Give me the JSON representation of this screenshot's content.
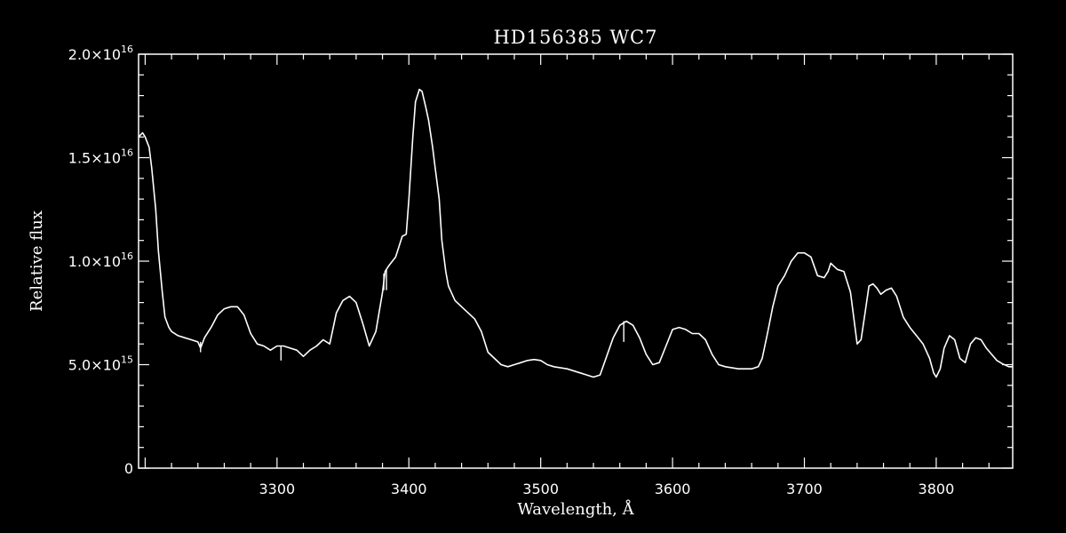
{
  "chart_data": {
    "type": "line",
    "title": "HD156385  WC7",
    "xlabel": "Wavelength, Å",
    "ylabel": "Relative flux",
    "xlim": [
      3195,
      3858
    ],
    "ylim": [
      0,
      2e+16
    ],
    "grid": false,
    "x_ticks": [
      {
        "value": 3300,
        "label": "3300"
      },
      {
        "value": 3400,
        "label": "3400"
      },
      {
        "value": 3500,
        "label": "3500"
      },
      {
        "value": 3600,
        "label": "3600"
      },
      {
        "value": 3700,
        "label": "3700"
      },
      {
        "value": 3800,
        "label": "3800"
      }
    ],
    "y_ticks": [
      {
        "value": 0,
        "mantissa": "0",
        "exponent": ""
      },
      {
        "value": 5000000000000000.0,
        "mantissa": "5.0×10",
        "exponent": "15"
      },
      {
        "value": 1e+16,
        "mantissa": "1.0×10",
        "exponent": "16"
      },
      {
        "value": 1.5e+16,
        "mantissa": "1.5×10",
        "exponent": "16"
      },
      {
        "value": 2e+16,
        "mantissa": "2.0×10",
        "exponent": "16"
      }
    ],
    "series": [
      {
        "color": "#ffffff",
        "x": [
          3195,
          3198,
          3200,
          3203,
          3205,
          3208,
          3210,
          3213,
          3215,
          3218,
          3220,
          3225,
          3230,
          3235,
          3240,
          3242,
          3245,
          3250,
          3255,
          3260,
          3265,
          3270,
          3275,
          3280,
          3285,
          3290,
          3295,
          3300,
          3305,
          3310,
          3315,
          3320,
          3325,
          3330,
          3335,
          3340,
          3345,
          3350,
          3355,
          3360,
          3365,
          3370,
          3375,
          3380,
          3382,
          3385,
          3390,
          3395,
          3398,
          3400,
          3403,
          3405,
          3408,
          3410,
          3413,
          3415,
          3418,
          3420,
          3423,
          3425,
          3428,
          3430,
          3435,
          3440,
          3450,
          3455,
          3460,
          3465,
          3470,
          3475,
          3480,
          3485,
          3490,
          3495,
          3500,
          3505,
          3510,
          3520,
          3530,
          3535,
          3540,
          3545,
          3550,
          3555,
          3560,
          3565,
          3570,
          3575,
          3580,
          3585,
          3590,
          3595,
          3600,
          3605,
          3610,
          3615,
          3620,
          3625,
          3630,
          3635,
          3640,
          3650,
          3660,
          3665,
          3668,
          3672,
          3676,
          3680,
          3685,
          3690,
          3695,
          3700,
          3705,
          3710,
          3715,
          3718,
          3720,
          3725,
          3730,
          3735,
          3738,
          3740,
          3743,
          3746,
          3749,
          3752,
          3755,
          3758,
          3762,
          3766,
          3770,
          3775,
          3780,
          3785,
          3790,
          3795,
          3798,
          3800,
          3803,
          3806,
          3810,
          3814,
          3818,
          3822,
          3826,
          3830,
          3834,
          3838,
          3842,
          3846,
          3850,
          3855,
          3858
        ],
        "y": [
          1.6e+16,
          1.62e+16,
          1.6e+16,
          1.55e+16,
          1.45e+16,
          1.25e+16,
          1.05e+16,
          8500000000000000.0,
          7300000000000000.0,
          6800000000000000.0,
          6600000000000000.0,
          6400000000000000.0,
          6300000000000000.0,
          6200000000000000.0,
          6100000000000000.0,
          5800000000000000.0,
          6300000000000000.0,
          6800000000000000.0,
          7400000000000000.0,
          7700000000000000.0,
          7800000000000000.0,
          7800000000000000.0,
          7400000000000000.0,
          6500000000000000.0,
          6000000000000000.0,
          5900000000000000.0,
          5700000000000000.0,
          5900000000000000.0,
          5900000000000000.0,
          5800000000000000.0,
          5700000000000000.0,
          5400000000000000.0,
          5700000000000000.0,
          5900000000000000.0,
          6200000000000000.0,
          6000000000000000.0,
          7500000000000000.0,
          8100000000000000.0,
          8300000000000000.0,
          8000000000000000.0,
          7000000000000000.0,
          5900000000000000.0,
          6600000000000000.0,
          8500000000000000.0,
          9500000000000000.0,
          9800000000000000.0,
          1.02e+16,
          1.12e+16,
          1.13e+16,
          1.3e+16,
          1.6e+16,
          1.77e+16,
          1.83e+16,
          1.82e+16,
          1.74e+16,
          1.68e+16,
          1.55e+16,
          1.45e+16,
          1.3e+16,
          1.1e+16,
          9500000000000000.0,
          8800000000000000.0,
          8100000000000000.0,
          7800000000000000.0,
          7200000000000000.0,
          6600000000000000.0,
          5600000000000000.0,
          5300000000000000.0,
          5000000000000000.0,
          4900000000000000.0,
          5000000000000000.0,
          5100000000000000.0,
          5200000000000000.0,
          5250000000000000.0,
          5200000000000000.0,
          5000000000000000.0,
          4900000000000000.0,
          4800000000000000.0,
          4600000000000000.0,
          4500000000000000.0,
          4400000000000000.0,
          4500000000000000.0,
          5400000000000000.0,
          6300000000000000.0,
          6900000000000000.0,
          7100000000000000.0,
          6900000000000000.0,
          6300000000000000.0,
          5500000000000000.0,
          5000000000000000.0,
          5100000000000000.0,
          5900000000000000.0,
          6700000000000000.0,
          6800000000000000.0,
          6700000000000000.0,
          6500000000000000.0,
          6500000000000000.0,
          6200000000000000.0,
          5500000000000000.0,
          5000000000000000.0,
          4900000000000000.0,
          4800000000000000.0,
          4800000000000000.0,
          4900000000000000.0,
          5300000000000000.0,
          6500000000000000.0,
          7800000000000000.0,
          8800000000000000.0,
          9300000000000000.0,
          1e+16,
          1.04e+16,
          1.04e+16,
          1.02e+16,
          9300000000000000.0,
          9200000000000000.0,
          9500000000000000.0,
          9900000000000000.0,
          9600000000000000.0,
          9500000000000000.0,
          8500000000000000.0,
          7000000000000000.0,
          6000000000000000.0,
          6200000000000000.0,
          7500000000000000.0,
          8800000000000000.0,
          8900000000000000.0,
          8700000000000000.0,
          8400000000000000.0,
          8600000000000000.0,
          8700000000000000.0,
          8300000000000000.0,
          7300000000000000.0,
          6800000000000000.0,
          6400000000000000.0,
          6000000000000000.0,
          5300000000000000.0,
          4600000000000000.0,
          4400000000000000.0,
          4800000000000000.0,
          5800000000000000.0,
          6400000000000000.0,
          6200000000000000.0,
          5300000000000000.0,
          5100000000000000.0,
          6000000000000000.0,
          6300000000000000.0,
          6200000000000000.0,
          5800000000000000.0,
          5500000000000000.0,
          5200000000000000.0,
          5050000000000000.0,
          4900000000000000.0,
          4900000000000000.0
        ]
      }
    ],
    "spikes": [
      {
        "x": 3242,
        "y0": 6100000000000000.0,
        "y1": 5600000000000000.0
      },
      {
        "x": 3303,
        "y0": 5900000000000000.0,
        "y1": 5200000000000000.0
      },
      {
        "x": 3381,
        "y0": 9400000000000000.0,
        "y1": 8600000000000000.0
      },
      {
        "x": 3383,
        "y0": 9600000000000000.0,
        "y1": 8600000000000000.0
      },
      {
        "x": 3563,
        "y0": 7100000000000000.0,
        "y1": 6100000000000000.0
      }
    ]
  }
}
